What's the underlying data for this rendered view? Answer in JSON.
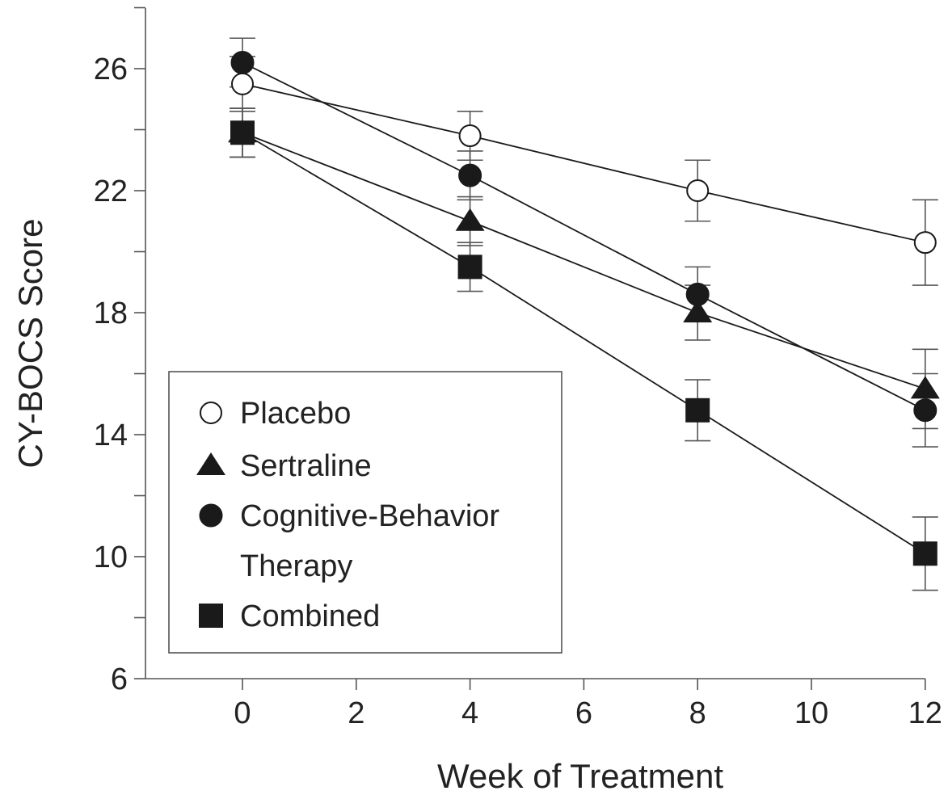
{
  "chart_data": {
    "type": "line",
    "xlabel": "Week of Treatment",
    "ylabel": "CY-BOCS Score",
    "xlim": [
      -1.8,
      12
    ],
    "ylim": [
      6,
      28
    ],
    "x_ticks": [
      0,
      2,
      4,
      6,
      8,
      10,
      12
    ],
    "y_ticks_labeled": [
      6,
      10,
      14,
      18,
      22,
      26
    ],
    "y_ticks_minor": [
      8,
      12,
      16,
      20,
      24,
      28
    ],
    "x": [
      0,
      4,
      8,
      12
    ],
    "legend_position": "bottom-left",
    "series": [
      {
        "name": "Placebo",
        "marker": "open-circle",
        "values": [
          25.5,
          23.8,
          22.0,
          20.3
        ],
        "error": [
          0.9,
          0.8,
          1.0,
          1.4
        ]
      },
      {
        "name": "Sertraline",
        "marker": "filled-triangle",
        "values": [
          23.9,
          21.0,
          18.0,
          15.5
        ],
        "error": [
          0.8,
          0.8,
          0.9,
          1.3
        ]
      },
      {
        "name": "Cognitive-Behavior Therapy",
        "name_lines": [
          "Cognitive-Behavior",
          "Therapy"
        ],
        "marker": "filled-circle",
        "values": [
          26.2,
          22.5,
          18.6,
          14.8
        ],
        "error": [
          0.8,
          0.8,
          0.9,
          1.2
        ]
      },
      {
        "name": "Combined",
        "marker": "filled-square",
        "values": [
          23.9,
          19.5,
          14.8,
          10.1
        ],
        "error": [
          0.8,
          0.8,
          1.0,
          1.2
        ]
      }
    ],
    "colors": {
      "ink": "#1a1a1a",
      "axis": "#555555",
      "error_bar": "#555555",
      "open_fill": "#ffffff"
    }
  }
}
